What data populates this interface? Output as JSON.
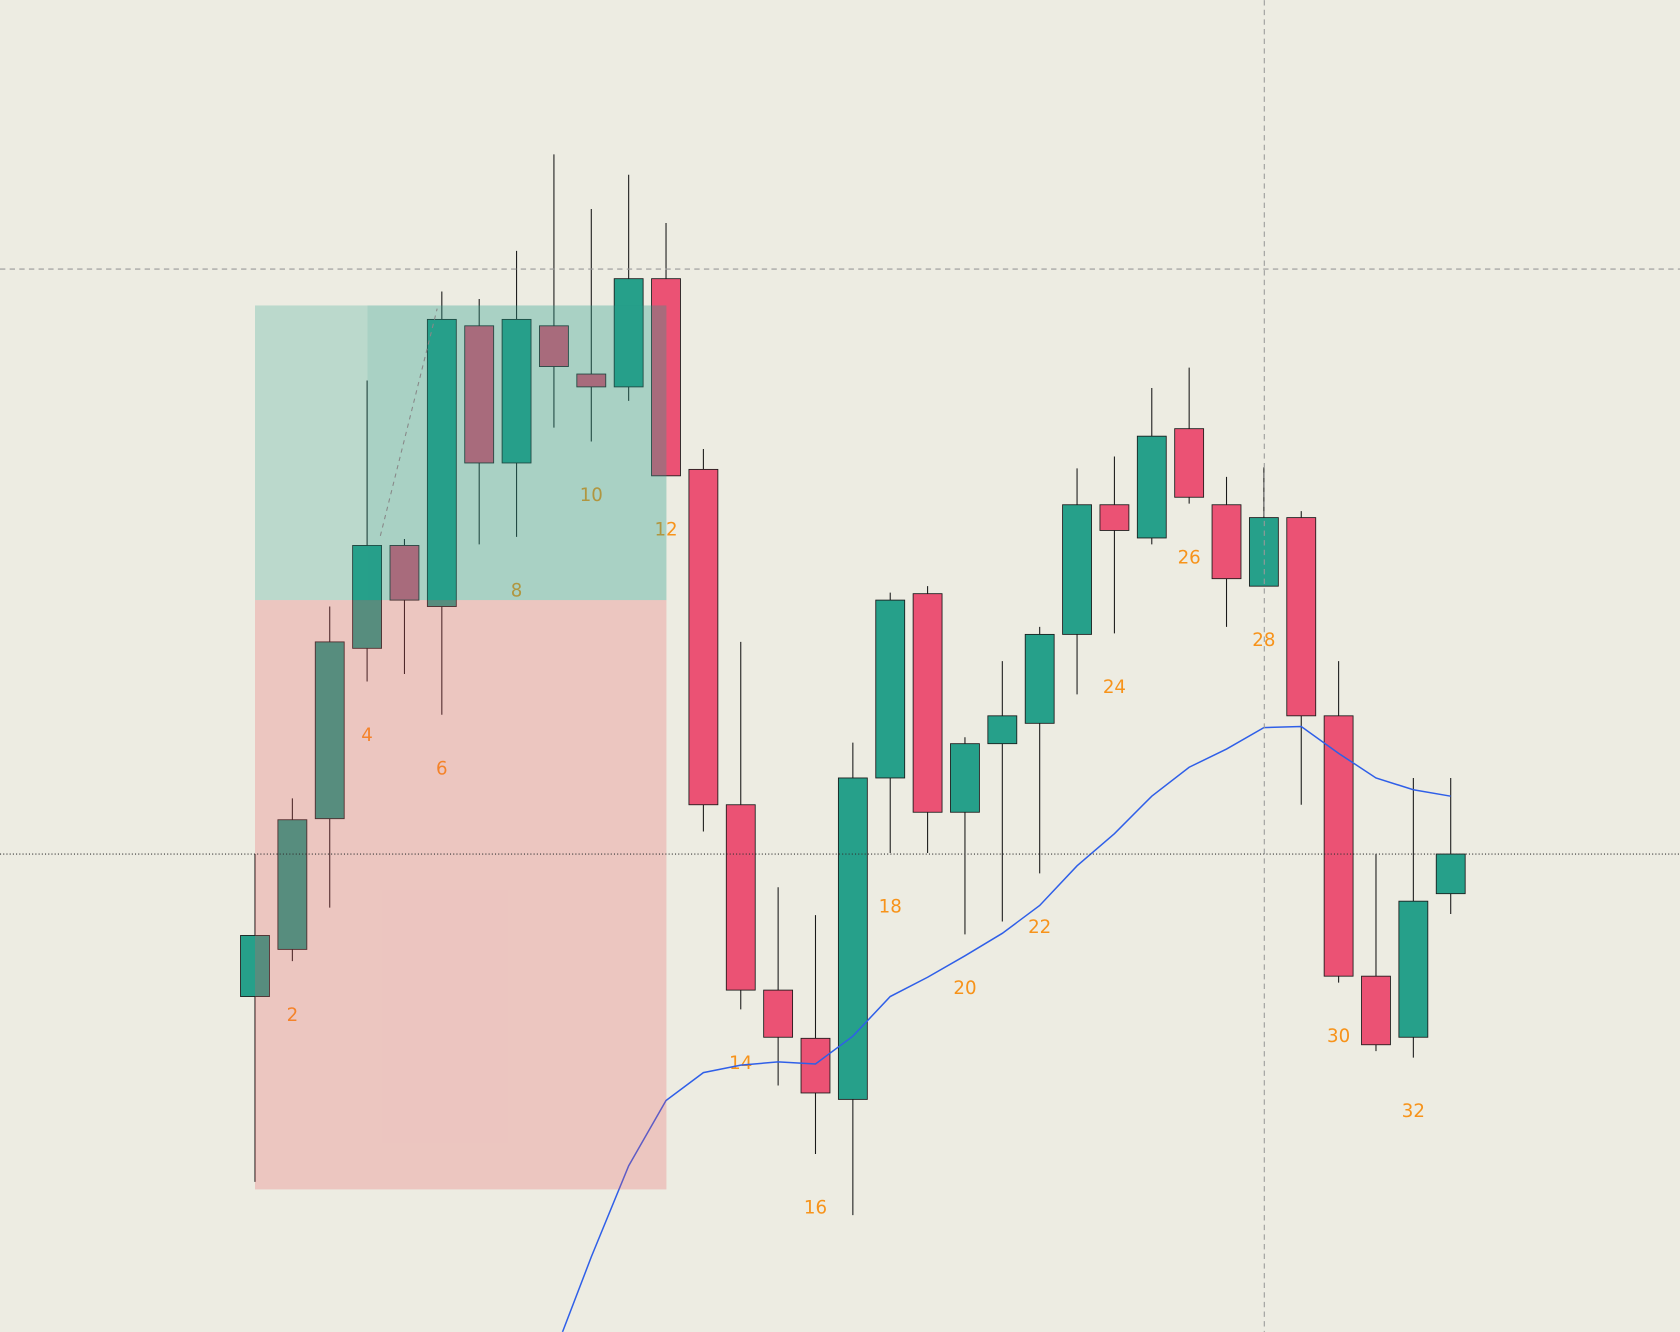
{
  "chart_data": {
    "type": "candlestick",
    "categories": [
      null,
      2,
      null,
      4,
      null,
      6,
      null,
      8,
      null,
      10,
      null,
      12,
      null,
      14,
      null,
      16,
      null,
      18,
      null,
      20,
      null,
      22,
      null,
      24,
      null,
      26,
      null,
      28,
      null,
      30,
      null,
      32,
      null
    ],
    "open": [
      31.3,
      35.7,
      47.9,
      63.8,
      73.4,
      67.7,
      93.9,
      81.1,
      93.9,
      89.4,
      88.2,
      98.3,
      80.5,
      49.2,
      31.9,
      27.4,
      21.7,
      51.7,
      68.9,
      48.5,
      54.9,
      56.8,
      65.1,
      77.2,
      74.1,
      84.3,
      77.2,
      69.6,
      76.0,
      57.5,
      33.2,
      27.5,
      40.9
    ],
    "high": [
      44.6,
      49.8,
      67.7,
      88.8,
      74.0,
      97.1,
      96.4,
      100.9,
      109.9,
      104.8,
      108.0,
      103.5,
      82.4,
      64.4,
      41.5,
      38.9,
      55.0,
      69.0,
      69.6,
      55.5,
      62.6,
      65.8,
      80.6,
      81.7,
      88.1,
      90.0,
      79.8,
      80.7,
      76.6,
      62.6,
      44.6,
      51.7,
      51.7
    ],
    "low": [
      14.0,
      34.6,
      39.6,
      60.7,
      61.4,
      57.6,
      73.5,
      74.2,
      84.4,
      83.1,
      86.9,
      79.9,
      46.7,
      30.1,
      23.0,
      16.6,
      10.9,
      44.7,
      44.7,
      37.1,
      38.3,
      42.8,
      59.5,
      65.2,
      73.5,
      77.3,
      65.8,
      69.6,
      49.2,
      32.6,
      26.2,
      25.6,
      39.0
    ],
    "close": [
      37.0,
      47.8,
      64.4,
      73.4,
      68.3,
      94.5,
      81.1,
      94.5,
      90.1,
      88.2,
      98.3,
      79.9,
      49.2,
      31.9,
      27.5,
      22.3,
      51.7,
      68.3,
      48.5,
      54.9,
      57.5,
      65.1,
      77.2,
      74.8,
      83.6,
      77.9,
      70.3,
      76.0,
      57.5,
      33.2,
      26.8,
      40.2,
      44.6
    ],
    "moving_average": {
      "color": "#2f5fe8",
      "values": [
        null,
        null,
        null,
        null,
        null,
        null,
        null,
        null,
        -2.1,
        7.0,
        15.5,
        21.6,
        24.2,
        24.9,
        25.2,
        25.0,
        27.6,
        31.3,
        33.1,
        35.1,
        37.2,
        39.8,
        43.5,
        46.5,
        50.0,
        52.7,
        54.4,
        56.4,
        56.5,
        54.0,
        51.7,
        50.6,
        50.0
      ]
    },
    "up_color": "#26a08a",
    "down_color": "#eb5274",
    "label_color": "#f7931a",
    "ylim": [
      0,
      124.3
    ]
  }
}
